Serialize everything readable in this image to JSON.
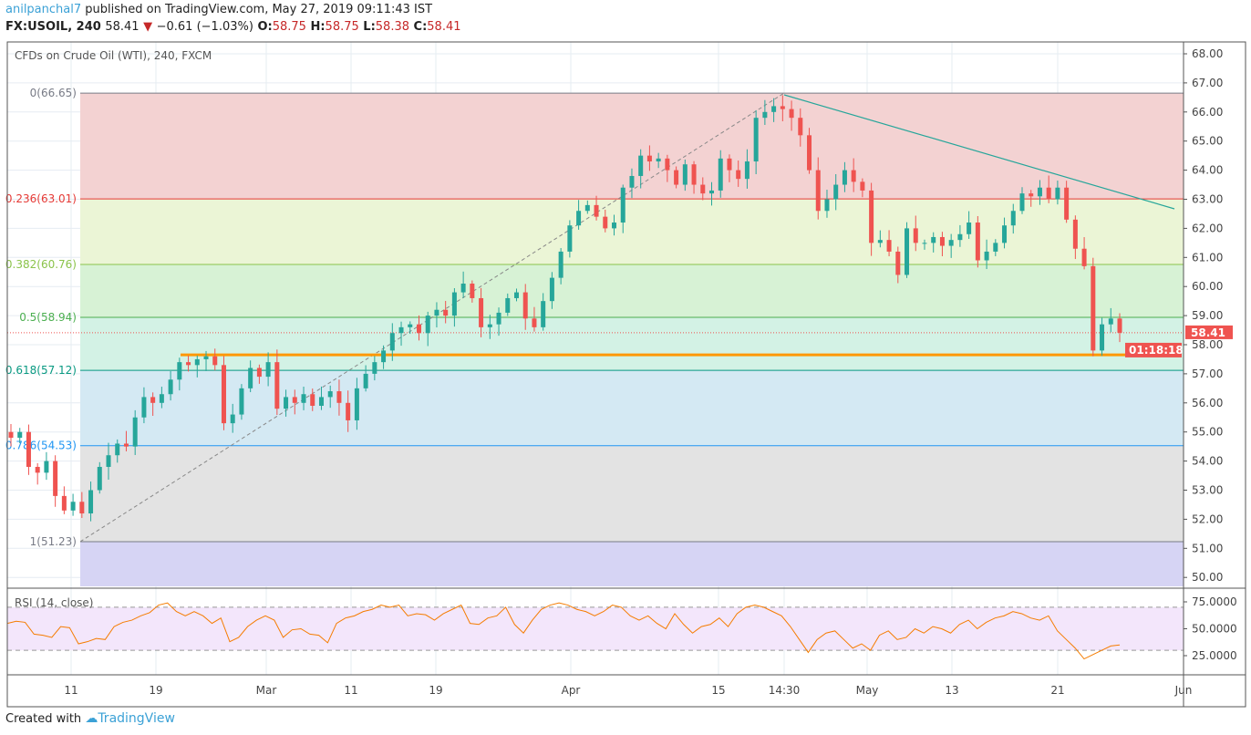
{
  "header": {
    "author": "anilpanchal7",
    "published": "published on TradingView.com, May 27, 2019 09:11:43 IST",
    "symbol": "FX:USOIL, 240",
    "last": "58.41",
    "change": "−0.61 (−1.03%)",
    "o_label": "O:",
    "o": "58.75",
    "h_label": "H:",
    "h": "58.75",
    "l_label": "L:",
    "l": "58.38",
    "c_label": "C:",
    "c": "58.41"
  },
  "footer": {
    "created": "Created with",
    "brand": "TradingView"
  },
  "chart_data": [
    {
      "type": "candlestick",
      "title": "CFDs on Crude Oil (WTI), 240, FXCM",
      "ylim": [
        49.7,
        68.3
      ],
      "y_ticks": [
        "50.00",
        "51.00",
        "52.00",
        "53.00",
        "54.00",
        "55.00",
        "56.00",
        "57.00",
        "58.00",
        "59.00",
        "60.00",
        "61.00",
        "62.00",
        "63.00",
        "64.00",
        "65.00",
        "66.00",
        "67.00",
        "68.00"
      ],
      "x_ticks": [
        "11",
        "19",
        "Mar",
        "11",
        "19",
        "Apr",
        "15",
        "14:30",
        "May",
        "13",
        "21",
        "Jun"
      ],
      "closes": [
        54.8,
        55.0,
        53.8,
        53.6,
        54.0,
        52.8,
        52.3,
        52.6,
        52.2,
        53.0,
        53.8,
        54.2,
        54.6,
        54.5,
        55.5,
        56.2,
        56.0,
        56.3,
        56.8,
        57.4,
        57.3,
        57.5,
        57.6,
        57.3,
        55.3,
        55.6,
        56.5,
        57.2,
        56.9,
        57.4,
        55.8,
        56.2,
        56.0,
        56.3,
        55.9,
        56.2,
        56.4,
        56.0,
        55.4,
        56.5,
        57.0,
        57.4,
        57.8,
        58.4,
        58.6,
        58.7,
        58.4,
        59.0,
        59.2,
        59.0,
        59.8,
        60.1,
        59.6,
        58.6,
        58.7,
        59.1,
        59.6,
        59.8,
        58.9,
        58.6,
        59.5,
        60.3,
        61.2,
        62.1,
        62.6,
        62.8,
        62.4,
        62.0,
        62.2,
        63.4,
        63.8,
        64.5,
        64.3,
        64.4,
        64.0,
        63.5,
        64.2,
        63.5,
        63.2,
        63.3,
        64.4,
        64.0,
        63.7,
        64.3,
        65.8,
        66.0,
        66.2,
        66.1,
        65.8,
        65.2,
        64.0,
        62.6,
        63.0,
        63.5,
        64.0,
        63.6,
        63.3,
        61.5,
        61.6,
        61.2,
        60.4,
        62.0,
        61.5,
        61.5,
        61.7,
        61.4,
        61.6,
        61.8,
        62.2,
        60.9,
        61.2,
        61.5,
        62.1,
        62.6,
        63.2,
        63.1,
        63.4,
        63.0,
        63.4,
        62.3,
        61.3,
        60.7,
        57.8,
        58.7,
        58.9,
        58.41
      ],
      "last_price": "58.41",
      "countdown": "01:18:18",
      "fib_levels": [
        {
          "label": "0(66.65)",
          "value": 66.65,
          "color": "#787b86",
          "fill": "#f3d2d2"
        },
        {
          "label": "0.236(63.01)",
          "value": 63.01,
          "color": "#e53935",
          "fill": "#ebf5d6"
        },
        {
          "label": "0.382(60.76)",
          "value": 60.76,
          "color": "#8bc34a",
          "fill": "#d7f2d5"
        },
        {
          "label": "0.5(58.94)",
          "value": 58.94,
          "color": "#4caf50",
          "fill": "#d3f2e5"
        },
        {
          "label": "0.618(57.12)",
          "value": 57.12,
          "color": "#089981",
          "fill": "#d4e9f3"
        },
        {
          "label": "0.786(54.53)",
          "value": 54.53,
          "color": "#2196f3",
          "fill": "#e3e3e3"
        },
        {
          "label": "1(51.23)",
          "value": 51.23,
          "color": "#787b86",
          "fill": "#d6d4f4"
        }
      ],
      "support_level": 57.65,
      "support_color": "#ff9800",
      "trendline_color": "#26a69a",
      "up_color": "#26a69a",
      "down_color": "#ef5350"
    },
    {
      "type": "line",
      "title": "RSI (14, close)",
      "ylim": [
        5,
        90
      ],
      "y_ticks": [
        "25.0000",
        "50.0000",
        "75.0000"
      ],
      "bands": [
        30,
        70
      ],
      "values": [
        55,
        57,
        56,
        45,
        44,
        42,
        52,
        51,
        36,
        38,
        41,
        40,
        52,
        56,
        58,
        62,
        65,
        72,
        74,
        66,
        62,
        66,
        62,
        55,
        60,
        38,
        42,
        52,
        58,
        62,
        58,
        42,
        49,
        50,
        45,
        44,
        37,
        55,
        60,
        62,
        66,
        68,
        72,
        70,
        72,
        62,
        64,
        63,
        58,
        64,
        68,
        72,
        55,
        54,
        60,
        62,
        70,
        54,
        46,
        58,
        68,
        72,
        74,
        72,
        68,
        66,
        62,
        66,
        72,
        70,
        62,
        58,
        62,
        55,
        50,
        64,
        54,
        46,
        52,
        54,
        60,
        52,
        64,
        70,
        72,
        70,
        66,
        62,
        52,
        40,
        28,
        40,
        46,
        48,
        40,
        32,
        36,
        30,
        44,
        48,
        40,
        42,
        50,
        46,
        52,
        50,
        46,
        54,
        58,
        50,
        56,
        60,
        62,
        66,
        64,
        60,
        58,
        62,
        48,
        40,
        32,
        22,
        26,
        30,
        34,
        35
      ]
    }
  ]
}
